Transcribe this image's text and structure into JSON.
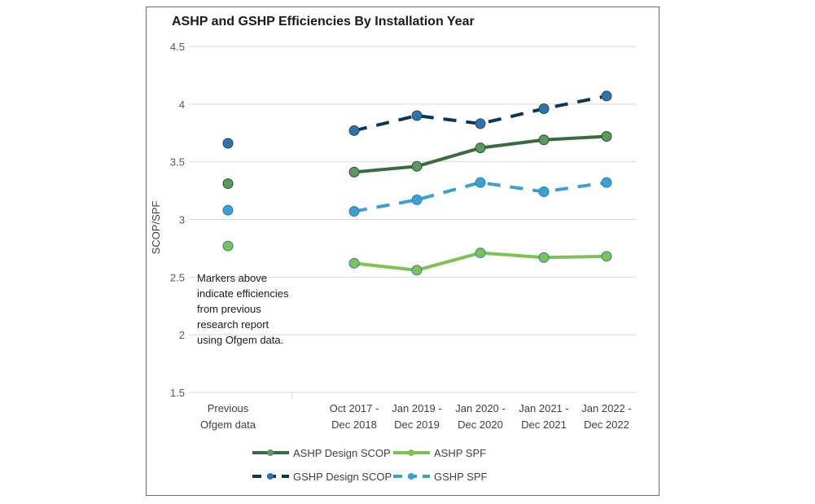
{
  "chart_data": {
    "type": "line",
    "title": "ASHP and GSHP Efficiencies By Installation Year",
    "ylabel": "SCOP/SPF",
    "xlabel": "",
    "ylim": [
      1.5,
      4.5
    ],
    "yticks": [
      "1.5",
      "2",
      "2.5",
      "3",
      "3.5",
      "4",
      "4.5"
    ],
    "grid": true,
    "categories": [
      [
        "Previous",
        "Ofgem data"
      ],
      [
        "Oct 2017 -",
        "Dec 2018"
      ],
      [
        "Jan 2019 -",
        "Dec 2019"
      ],
      [
        "Jan 2020 -",
        "Dec 2020"
      ],
      [
        "Jan 2021 -",
        "Dec 2021"
      ],
      [
        "Jan 2022 -",
        "Dec 2022"
      ]
    ],
    "annotation": [
      "Markers above",
      "indicate efficiencies",
      "from previous",
      "research report",
      "using Ofgem data."
    ],
    "legend_position": "bottom",
    "series": [
      {
        "name": "ASHP Design SCOP",
        "color": "#3a6b3c",
        "marker": "#5a9a60",
        "dash": "solid",
        "values": [
          3.31,
          3.41,
          3.46,
          3.62,
          3.69,
          3.72
        ]
      },
      {
        "name": "ASHP SPF",
        "color": "#7cc352",
        "marker": "#7cc352",
        "dash": "solid",
        "values": [
          2.77,
          2.62,
          2.56,
          2.71,
          2.67,
          2.68
        ]
      },
      {
        "name": "GSHP Design SCOP",
        "color": "#0d3556",
        "marker": "#2a74b5",
        "dash": "dashed",
        "values": [
          3.66,
          3.77,
          3.9,
          3.83,
          3.96,
          4.07
        ]
      },
      {
        "name": "GSHP SPF",
        "color": "#3aa0d6",
        "marker": "#3aa0d6",
        "dash": "dashed",
        "values": [
          3.08,
          3.07,
          3.17,
          3.32,
          3.24,
          3.32
        ]
      }
    ]
  }
}
